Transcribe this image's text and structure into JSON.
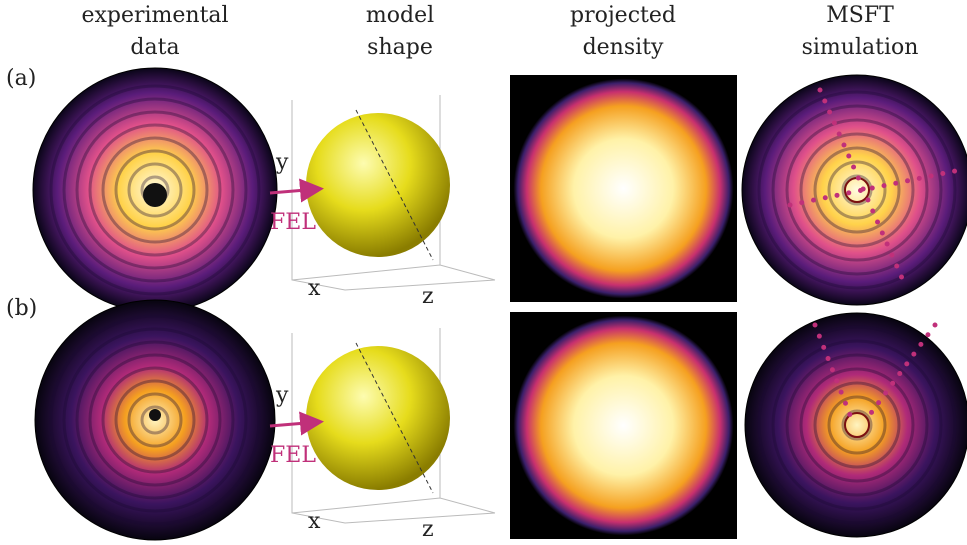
{
  "column_headers": [
    {
      "line1": "experimental",
      "line2": "data"
    },
    {
      "line1": "model",
      "line2": "shape"
    },
    {
      "line1": "projected",
      "line2": "density"
    },
    {
      "line1": "MSFT",
      "line2": "simulation"
    }
  ],
  "rows": [
    {
      "label": "(a)",
      "axis_y": "y",
      "axis_x": "x",
      "axis_z": "z",
      "beam": "FEL"
    },
    {
      "label": "(b)",
      "axis_y": "y",
      "axis_x": "x",
      "axis_z": "z",
      "beam": "FEL"
    }
  ]
}
